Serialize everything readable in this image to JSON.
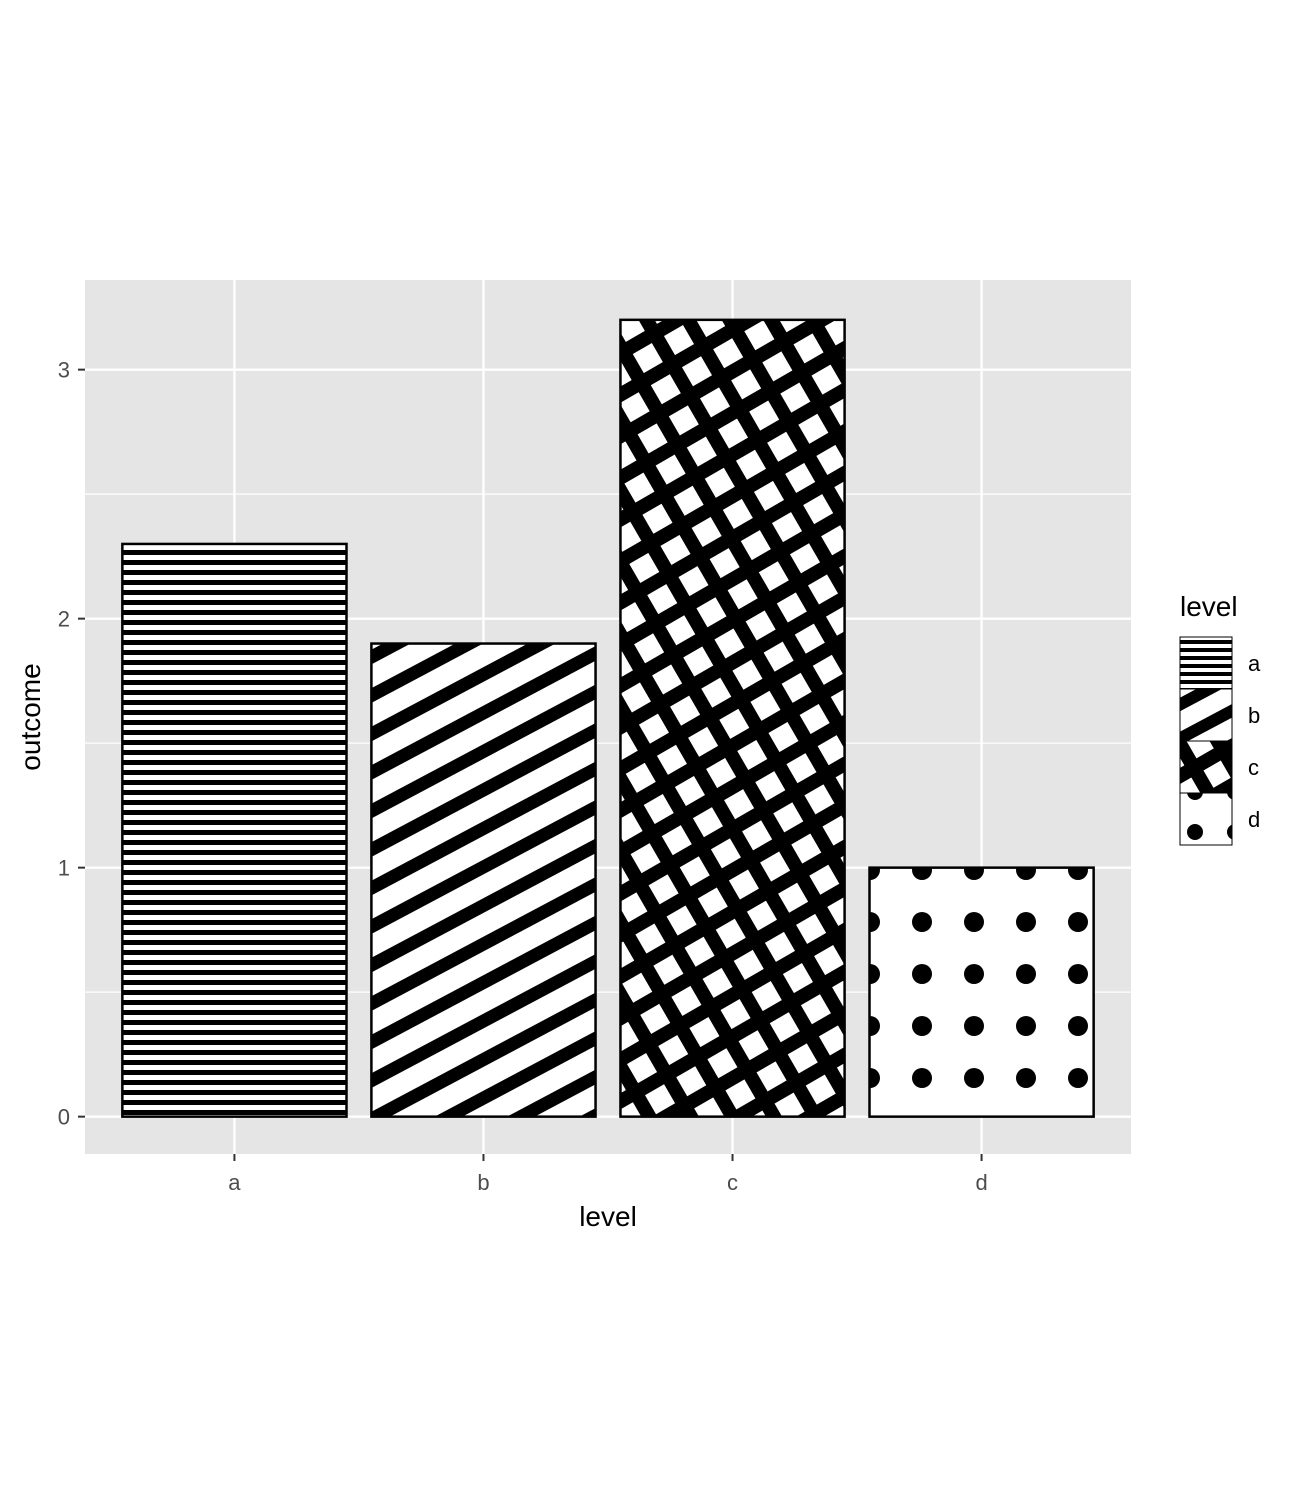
{
  "chart_data": {
    "type": "bar",
    "categories": [
      "a",
      "b",
      "c",
      "d"
    ],
    "values": [
      2.3,
      1.9,
      3.2,
      1.0
    ],
    "patterns": [
      "horizontal-stripes",
      "diagonal-stripes",
      "crosshatch",
      "dots"
    ],
    "xlabel": "level",
    "ylabel": "outcome",
    "yticks": [
      0,
      1,
      2,
      3
    ],
    "ylim": [
      -0.15,
      3.36
    ],
    "grid": true,
    "legend": {
      "title": "level",
      "placement": "right",
      "entries": [
        "a",
        "b",
        "c",
        "d"
      ]
    },
    "colors": {
      "panel_background": "#e5e5e5",
      "grid": "#ffffff",
      "bar_outline": "#000000",
      "pattern": "#000000",
      "axis_text": "#4d4d4d"
    }
  }
}
